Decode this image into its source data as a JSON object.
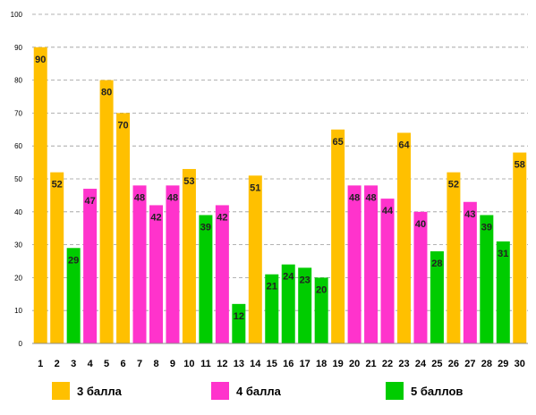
{
  "chart_data": {
    "type": "bar",
    "title": "",
    "xlabel": "",
    "ylabel": "",
    "ylim": [
      0,
      100
    ],
    "yticks": [
      0,
      10,
      20,
      30,
      40,
      50,
      60,
      70,
      80,
      90,
      100
    ],
    "grid": true,
    "categories": [
      "1",
      "2",
      "3",
      "4",
      "5",
      "6",
      "7",
      "8",
      "9",
      "10",
      "11",
      "12",
      "13",
      "14",
      "15",
      "16",
      "17",
      "18",
      "19",
      "20",
      "21",
      "22",
      "23",
      "24",
      "25",
      "26",
      "27",
      "28",
      "29",
      "30"
    ],
    "values": [
      90,
      52,
      29,
      47,
      80,
      70,
      48,
      42,
      48,
      53,
      39,
      42,
      12,
      51,
      21,
      24,
      23,
      20,
      65,
      48,
      48,
      44,
      64,
      40,
      28,
      52,
      43,
      39,
      31,
      58
    ],
    "groups": [
      "g3",
      "g3",
      "g5",
      "g4",
      "g3",
      "g3",
      "g4",
      "g4",
      "g4",
      "g3",
      "g5",
      "g4",
      "g5",
      "g3",
      "g5",
      "g5",
      "g5",
      "g5",
      "g3",
      "g4",
      "g4",
      "g4",
      "g3",
      "g4",
      "g5",
      "g3",
      "g4",
      "g5",
      "g5",
      "g3"
    ],
    "legend_position": "bottom",
    "legend": [
      {
        "key": "g3",
        "label": "3 балла",
        "color": "#FFC000"
      },
      {
        "key": "g4",
        "label": "4 балла",
        "color": "#FF33CC"
      },
      {
        "key": "g5",
        "label": "5 баллов",
        "color": "#00CC00"
      }
    ]
  }
}
